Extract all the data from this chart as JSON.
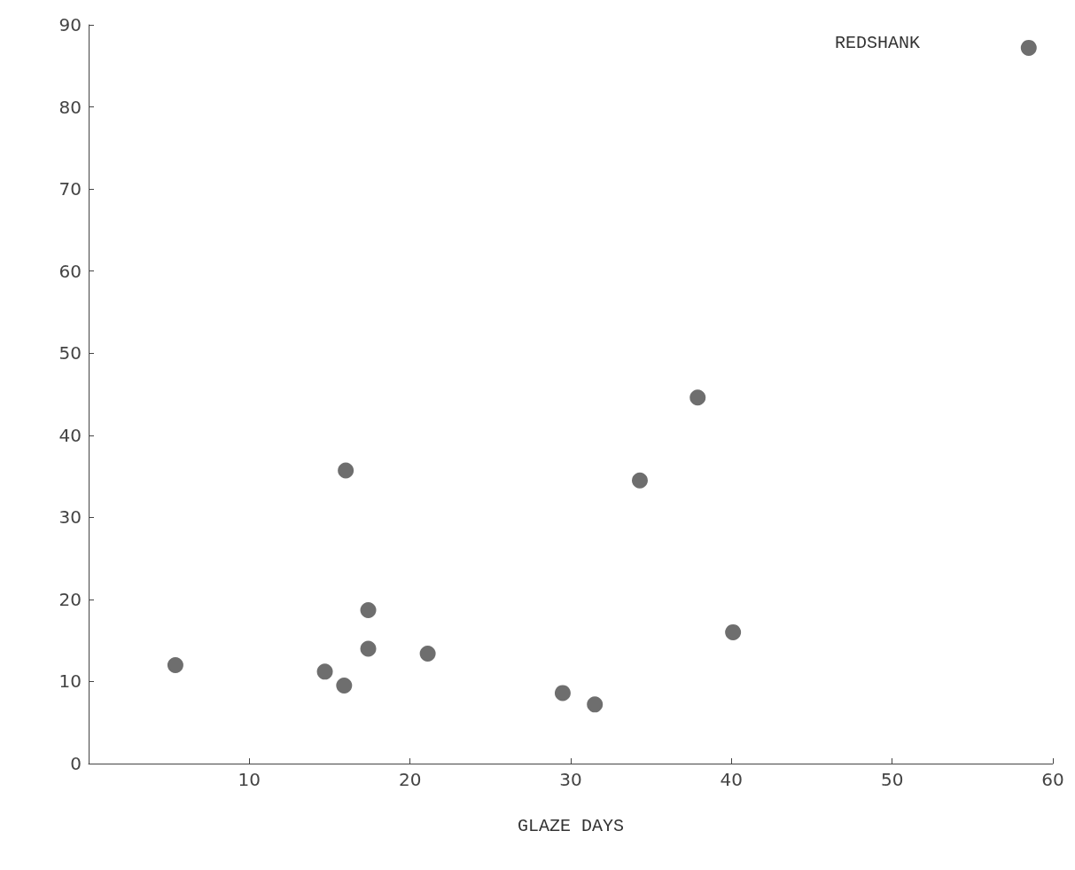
{
  "chart_data": {
    "type": "scatter",
    "xlabel": "GLAZE DAYS",
    "annotations": [
      "REDSHANK"
    ],
    "x": [
      5.4,
      14.7,
      15.9,
      16.0,
      17.4,
      17.4,
      21.1,
      29.5,
      31.5,
      34.3,
      37.9,
      40.1,
      58.5
    ],
    "values": [
      12,
      11.2,
      9.5,
      35.7,
      18.7,
      14,
      13.4,
      8.6,
      7.2,
      34.5,
      44.6,
      16,
      87.2
    ],
    "color": "#4a4a4a",
    "marker": "circle",
    "grid": false,
    "xlim": [
      0,
      60
    ],
    "xticks": [
      10,
      20,
      30,
      40,
      50,
      60
    ],
    "ylim": [
      0,
      90
    ],
    "yticks": [
      0,
      10,
      20,
      30,
      40,
      50,
      60,
      70,
      80,
      90
    ]
  }
}
